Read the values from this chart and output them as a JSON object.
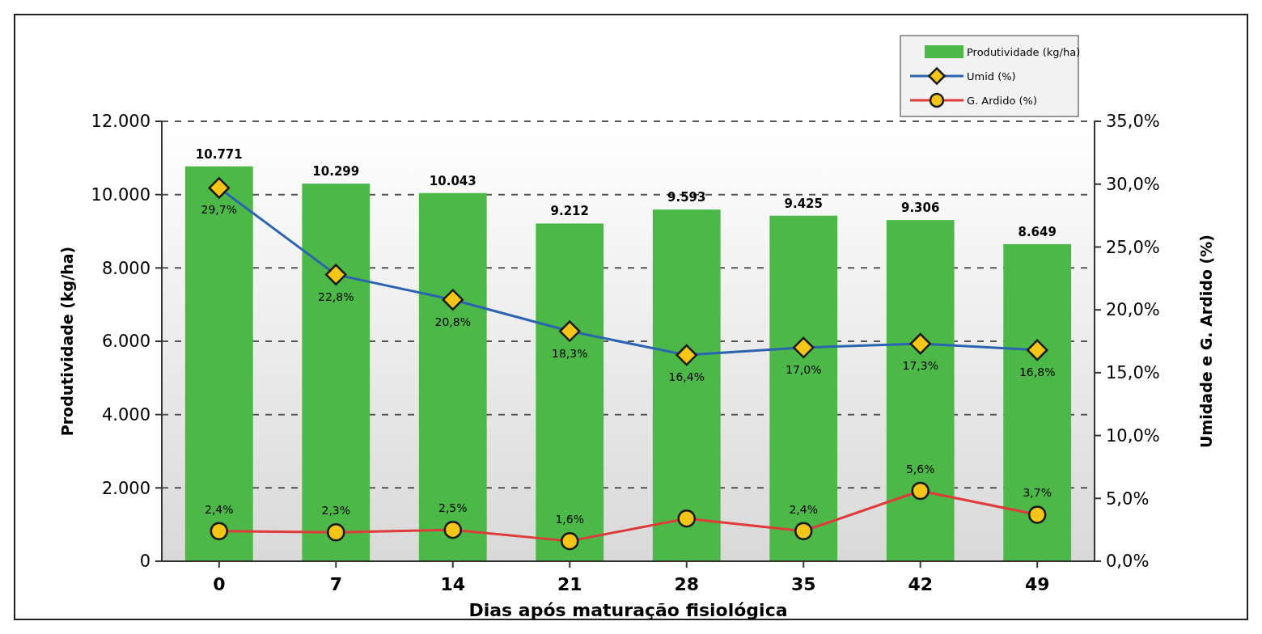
{
  "chart_data": {
    "type": "bar",
    "xlabel": "Dias após maturação fisiológica",
    "ylabel": "Produtividade (kg/ha)",
    "y2label": "Umidade e G. Ardido (%)",
    "categories": [
      "0",
      "7",
      "14",
      "21",
      "28",
      "35",
      "42",
      "49"
    ],
    "series": [
      {
        "name": "Produtividade (kg/ha)",
        "color": "#4cb848",
        "values": [
          10771,
          10299,
          10043,
          9212,
          9593,
          9425,
          9306,
          8649
        ],
        "value_labels": [
          "10.771",
          "10.299",
          "10.043",
          "9.212",
          "9.593",
          "9.425",
          "9.306",
          "8.649"
        ]
      },
      {
        "name": "Umid (%)",
        "type": "line",
        "axis": "y2",
        "color": "#2a64b0",
        "marker": "diamond",
        "values": [
          29.7,
          22.8,
          20.8,
          18.3,
          16.4,
          17.0,
          17.3,
          16.8
        ],
        "value_labels": [
          "29,7%",
          "22,8%",
          "20,8%",
          "18,3%",
          "16,4%",
          "17,0%",
          "17,3%",
          "16,8%"
        ]
      },
      {
        "name": "G. Ardido (%)",
        "type": "line",
        "axis": "y2",
        "color": "#e03a3a",
        "marker": "circle",
        "values": [
          2.4,
          2.3,
          2.5,
          1.6,
          3.4,
          2.4,
          5.6,
          3.7
        ],
        "value_labels": [
          "2,4%",
          "2,3%",
          "2,5%",
          "1,6%",
          null,
          "2,4%",
          "5,6%",
          "3,7%"
        ]
      }
    ],
    "ylim": [
      0,
      12000
    ],
    "yticks": [
      {
        "value": 0,
        "label": "0"
      },
      {
        "value": 2000,
        "label": "2.000"
      },
      {
        "value": 4000,
        "label": "4.000"
      },
      {
        "value": 6000,
        "label": "6.000"
      },
      {
        "value": 8000,
        "label": "8.000"
      },
      {
        "value": 10000,
        "label": "10.000"
      },
      {
        "value": 12000,
        "label": "12.000"
      }
    ],
    "y2lim": [
      0,
      35
    ],
    "y2ticks": [
      {
        "value": 0,
        "label": "0,0%"
      },
      {
        "value": 5,
        "label": "5,0%"
      },
      {
        "value": 10,
        "label": "10,0%"
      },
      {
        "value": 15,
        "label": "15,0%"
      },
      {
        "value": 20,
        "label": "20,0%"
      },
      {
        "value": 25,
        "label": "25,0%"
      },
      {
        "value": 30,
        "label": "30,0%"
      },
      {
        "value": 35,
        "label": "35,0%"
      }
    ],
    "grid": "y",
    "legend": "top right"
  }
}
